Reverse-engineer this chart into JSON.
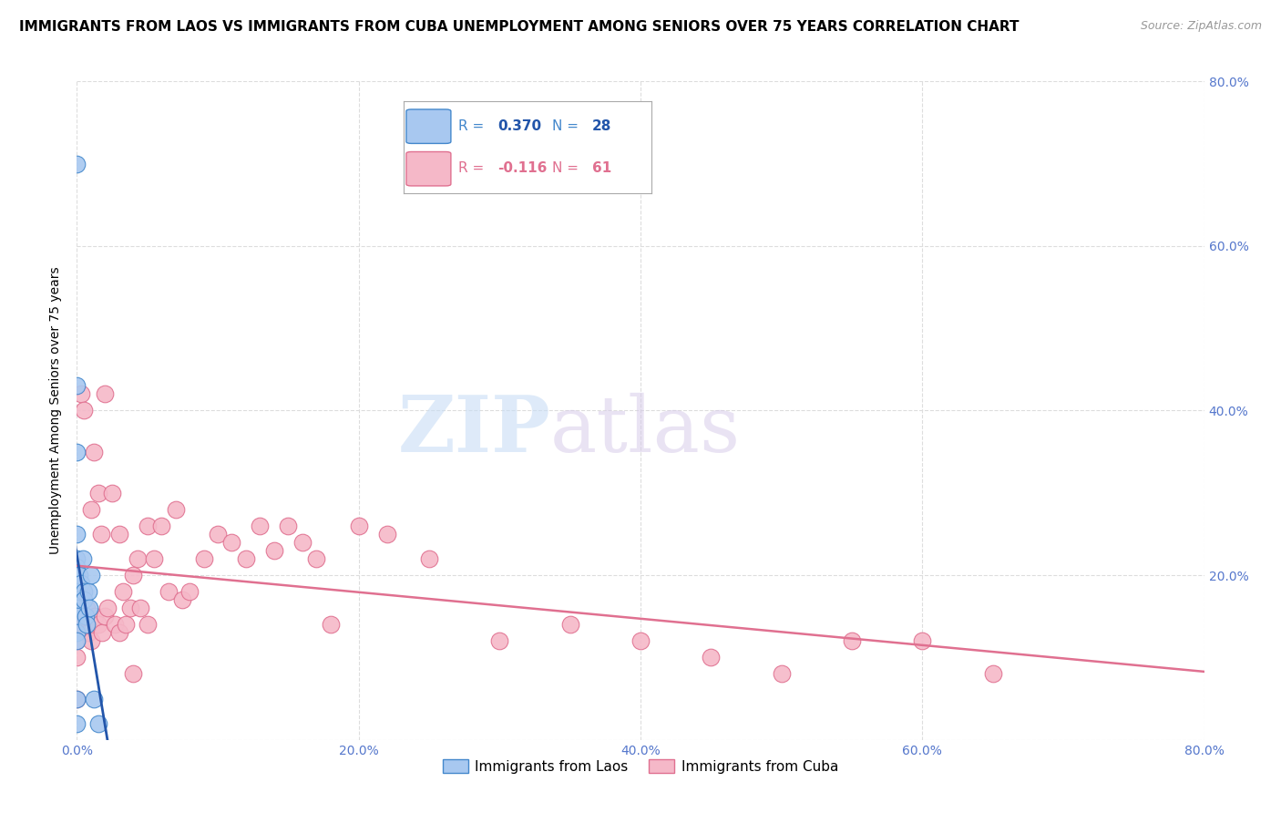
{
  "title": "IMMIGRANTS FROM LAOS VS IMMIGRANTS FROM CUBA UNEMPLOYMENT AMONG SENIORS OVER 75 YEARS CORRELATION CHART",
  "source": "Source: ZipAtlas.com",
  "ylabel": "Unemployment Among Seniors over 75 years",
  "xlim": [
    0.0,
    0.8
  ],
  "ylim": [
    0.0,
    0.8
  ],
  "xtick_vals": [
    0.0,
    0.2,
    0.4,
    0.6,
    0.8
  ],
  "ytick_vals": [
    0.0,
    0.2,
    0.4,
    0.6,
    0.8
  ],
  "xticklabels": [
    "0.0%",
    "20.0%",
    "40.0%",
    "60.0%",
    "80.0%"
  ],
  "right_yticklabels": [
    "",
    "20.0%",
    "40.0%",
    "60.0%",
    "80.0%"
  ],
  "watermark_zip": "ZIP",
  "watermark_atlas": "atlas",
  "laos_color": "#a8c8f0",
  "cuba_color": "#f5b8c8",
  "laos_edge_color": "#4488cc",
  "cuba_edge_color": "#e07090",
  "laos_line_color": "#2255aa",
  "cuba_line_color": "#e07090",
  "laos_R": 0.37,
  "laos_N": 28,
  "cuba_R": -0.116,
  "cuba_N": 61,
  "laos_scatter_x": [
    0.0,
    0.0,
    0.0,
    0.0,
    0.0,
    0.0,
    0.0,
    0.0,
    0.0,
    0.0,
    0.0,
    0.0,
    0.0,
    0.0,
    0.0,
    0.0,
    0.002,
    0.003,
    0.004,
    0.005,
    0.005,
    0.006,
    0.007,
    0.008,
    0.009,
    0.01,
    0.012,
    0.015
  ],
  "laos_scatter_y": [
    0.7,
    0.43,
    0.35,
    0.25,
    0.22,
    0.21,
    0.2,
    0.2,
    0.18,
    0.17,
    0.16,
    0.15,
    0.13,
    0.12,
    0.05,
    0.02,
    0.2,
    0.19,
    0.22,
    0.18,
    0.17,
    0.15,
    0.14,
    0.18,
    0.16,
    0.2,
    0.05,
    0.02
  ],
  "cuba_scatter_x": [
    0.0,
    0.0,
    0.0,
    0.0,
    0.0,
    0.003,
    0.005,
    0.005,
    0.007,
    0.008,
    0.01,
    0.01,
    0.012,
    0.013,
    0.015,
    0.015,
    0.017,
    0.018,
    0.02,
    0.02,
    0.022,
    0.025,
    0.027,
    0.03,
    0.03,
    0.033,
    0.035,
    0.038,
    0.04,
    0.04,
    0.043,
    0.045,
    0.05,
    0.05,
    0.055,
    0.06,
    0.065,
    0.07,
    0.075,
    0.08,
    0.09,
    0.1,
    0.11,
    0.12,
    0.13,
    0.14,
    0.15,
    0.16,
    0.17,
    0.18,
    0.2,
    0.22,
    0.25,
    0.3,
    0.35,
    0.4,
    0.45,
    0.5,
    0.55,
    0.6,
    0.65
  ],
  "cuba_scatter_y": [
    0.14,
    0.13,
    0.12,
    0.1,
    0.05,
    0.42,
    0.4,
    0.15,
    0.16,
    0.13,
    0.28,
    0.12,
    0.35,
    0.15,
    0.3,
    0.14,
    0.25,
    0.13,
    0.42,
    0.15,
    0.16,
    0.3,
    0.14,
    0.25,
    0.13,
    0.18,
    0.14,
    0.16,
    0.2,
    0.08,
    0.22,
    0.16,
    0.26,
    0.14,
    0.22,
    0.26,
    0.18,
    0.28,
    0.17,
    0.18,
    0.22,
    0.25,
    0.24,
    0.22,
    0.26,
    0.23,
    0.26,
    0.24,
    0.22,
    0.14,
    0.26,
    0.25,
    0.22,
    0.12,
    0.14,
    0.12,
    0.1,
    0.08,
    0.12,
    0.12,
    0.08
  ],
  "background_color": "#ffffff",
  "grid_color": "#dddddd",
  "tick_label_color": "#5577cc",
  "title_fontsize": 11,
  "axis_label_fontsize": 10,
  "tick_fontsize": 10,
  "legend_fontsize": 11,
  "marker_size": 180
}
